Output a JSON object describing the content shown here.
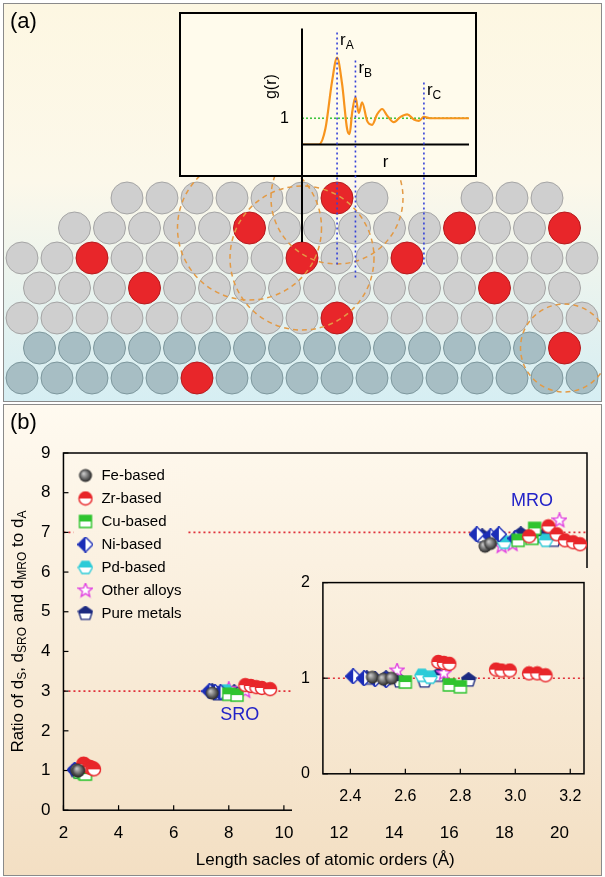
{
  "chart_data": [
    {
      "panel": "(a)",
      "type": "line",
      "x_label": "r",
      "y_label": "g(r)",
      "x": [
        0,
        1.0,
        1.4,
        1.8,
        2.1,
        2.4,
        2.7,
        2.85,
        3.0,
        3.2,
        3.4,
        3.6,
        3.9,
        4.2,
        4.5,
        4.8,
        5.1,
        5.5,
        5.9,
        6.3,
        6.7,
        7.0,
        7.3,
        7.7,
        10
      ],
      "values": [
        0,
        0,
        0.6,
        2.4,
        3.3,
        2.3,
        0.6,
        0.4,
        1.2,
        1.8,
        1.2,
        1.6,
        0.9,
        0.75,
        1.15,
        1.35,
        1.1,
        0.85,
        1.05,
        1.15,
        0.95,
        0.9,
        1.05,
        1.0,
        1.0
      ],
      "color": "#f7941d",
      "xlim": [
        0,
        10
      ],
      "ylim": [
        0,
        4.4
      ],
      "yticks": [
        1
      ],
      "grid": true,
      "tick_labels": "y",
      "annotations": [
        {
          "text": [
            "r",
            {
              "sub": "A"
            }
          ],
          "x": 2.1
        },
        {
          "text": [
            "r",
            {
              "sub": "B"
            }
          ],
          "x": 3.2
        },
        {
          "text": [
            "r",
            {
              "sub": "C"
            }
          ],
          "x": 7.3
        }
      ]
    },
    {
      "panel": "(b)",
      "type": "scatter",
      "x_label": "Length sacles of atomic orders (Å)",
      "y_label": [
        "Ratio of d",
        {
          "sub": "S"
        },
        ", d",
        {
          "sub": "SRO"
        },
        " and d",
        {
          "sub": "MRO"
        },
        " to d",
        {
          "sub": "A"
        }
      ],
      "xlim": [
        2,
        21
      ],
      "xticks": [
        2,
        4,
        6,
        8,
        10,
        12,
        14,
        16,
        18,
        20
      ],
      "ylim": [
        0,
        9
      ],
      "yticks": [
        0,
        1,
        2,
        3,
        4,
        5,
        6,
        7,
        8,
        9
      ],
      "grid": false,
      "legend": "upper left",
      "reference_lines": [
        3,
        7
      ],
      "annotations": [
        {
          "text": "SRO",
          "x": 8.4,
          "y": 2.4
        },
        {
          "text": "MRO",
          "x": 19.0,
          "y": 7.8
        }
      ],
      "series": [
        {
          "name": "Fe-based",
          "color": "#1a1a1a",
          "marker": "sphere",
          "x": [
            2.48,
            2.52,
            2.55,
            7.4,
            17.3,
            17.5
          ],
          "values": [
            1.01,
            0.99,
            1.0,
            2.95,
            6.65,
            6.72
          ]
        },
        {
          "name": "Zr-based",
          "color": "#e8262a",
          "marker": "half_circle",
          "x": [
            2.72,
            2.74,
            2.76,
            2.93,
            2.95,
            2.98,
            3.05,
            3.08,
            3.11,
            8.6,
            8.8,
            9.0,
            9.2,
            9.5,
            18.9,
            19.6,
            19.9,
            20.2,
            20.5,
            20.75
          ],
          "values": [
            1.17,
            1.16,
            1.15,
            1.09,
            1.08,
            1.08,
            1.05,
            1.05,
            1.03,
            3.15,
            3.13,
            3.1,
            3.08,
            3.05,
            6.9,
            7.15,
            6.95,
            6.8,
            6.75,
            6.7
          ]
        },
        {
          "name": "Cu-based",
          "color": "#2fc42f",
          "marker": "half_square",
          "x": [
            2.6,
            2.76,
            2.8,
            8.0,
            8.3,
            18.5,
            19.0,
            19.1
          ],
          "values": [
            0.96,
            0.93,
            0.91,
            2.92,
            2.9,
            6.8,
            6.85,
            7.1
          ]
        },
        {
          "name": "Ni-based",
          "color": "#1b2db8",
          "marker": "half_diamond",
          "x": [
            2.41,
            2.45,
            2.49,
            2.53,
            7.3,
            7.5,
            7.7,
            17.0,
            17.5,
            17.8,
            18.4
          ],
          "values": [
            1.02,
            1.0,
            0.99,
            0.98,
            3.0,
            2.98,
            2.97,
            6.95,
            6.9,
            6.95,
            6.85
          ]
        },
        {
          "name": "Pd-based",
          "color": "#2ccbd8",
          "marker": "half_hexagon",
          "x": [
            2.66,
            2.69,
            7.9,
            18.0,
            19.5
          ],
          "values": [
            1.03,
            1.01,
            3.0,
            6.75,
            6.8
          ]
        },
        {
          "name": "Other alloys",
          "color": "#e040e0",
          "marker": "star",
          "x": [
            2.57,
            2.74,
            8.0,
            8.6,
            17.9,
            18.3,
            20.0
          ],
          "values": [
            1.08,
            1.05,
            3.05,
            3.0,
            6.65,
            6.7,
            7.3
          ]
        },
        {
          "name": "Pure metals",
          "color": "#1c2a80",
          "marker": "half_pentagon",
          "x": [
            2.46,
            2.53,
            2.58,
            2.67,
            2.72,
            2.83,
            7.4,
            7.6,
            7.8,
            8.2,
            17.2,
            17.7,
            18.6,
            19.4,
            19.8
          ],
          "values": [
            1.0,
            1.0,
            0.97,
            0.97,
            1.03,
            0.98,
            3.0,
            2.93,
            2.95,
            2.97,
            6.9,
            6.85,
            6.95,
            6.9,
            6.8
          ]
        }
      ],
      "inset": {
        "xlim": [
          2.3,
          3.25
        ],
        "xticks": [
          2.4,
          2.6,
          2.8,
          {
            "value": 3,
            "label": "3.0"
          },
          3.2
        ],
        "ylim": [
          0,
          2
        ],
        "yticks": [
          0,
          1,
          2
        ],
        "reference_lines": [
          1
        ]
      }
    }
  ]
}
